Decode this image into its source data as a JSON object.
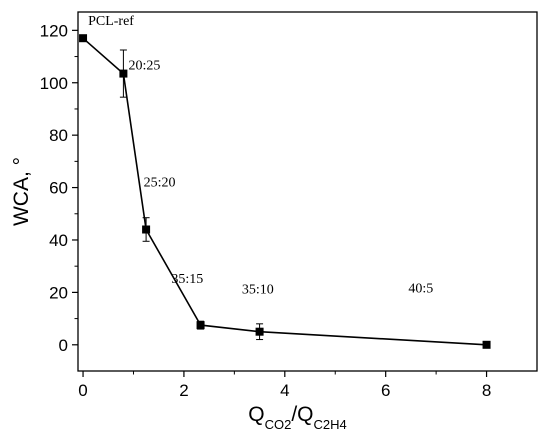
{
  "chart_data": {
    "type": "scatter",
    "title": "",
    "xlabel": {
      "main": "Q",
      "sub1": "CO2",
      "sep": "/Q",
      "sub2": "C2H4"
    },
    "ylabel": "WCA, °",
    "xlim": [
      -0.1,
      9.0
    ],
    "ylim": [
      -10,
      127
    ],
    "xticks": [
      0,
      2,
      4,
      6,
      8
    ],
    "yticks": [
      0,
      20,
      40,
      60,
      80,
      100,
      120
    ],
    "grid": false,
    "legend": "none",
    "series": [
      {
        "x": [
          0,
          0.8,
          1.25,
          2.33,
          3.5,
          8
        ],
        "y": [
          117,
          103.5,
          44,
          7.5,
          5,
          0
        ],
        "yerr": [
          0,
          9,
          4.5,
          1.5,
          3,
          0
        ]
      }
    ],
    "annotations": [
      {
        "text": "PCL-ref",
        "x": 0.1,
        "y": 122
      },
      {
        "text": "20:25",
        "x": 0.9,
        "y": 105
      },
      {
        "text": "25:20",
        "x": 1.2,
        "y": 60.5
      },
      {
        "text": "35:15",
        "x": 1.75,
        "y": 23.5
      },
      {
        "text": "35:10",
        "x": 3.15,
        "y": 19.5
      },
      {
        "text": "40:5",
        "x": 6.45,
        "y": 20
      }
    ],
    "colors": {
      "line": "#000000",
      "marker": "#000000",
      "axis": "#000000"
    }
  }
}
